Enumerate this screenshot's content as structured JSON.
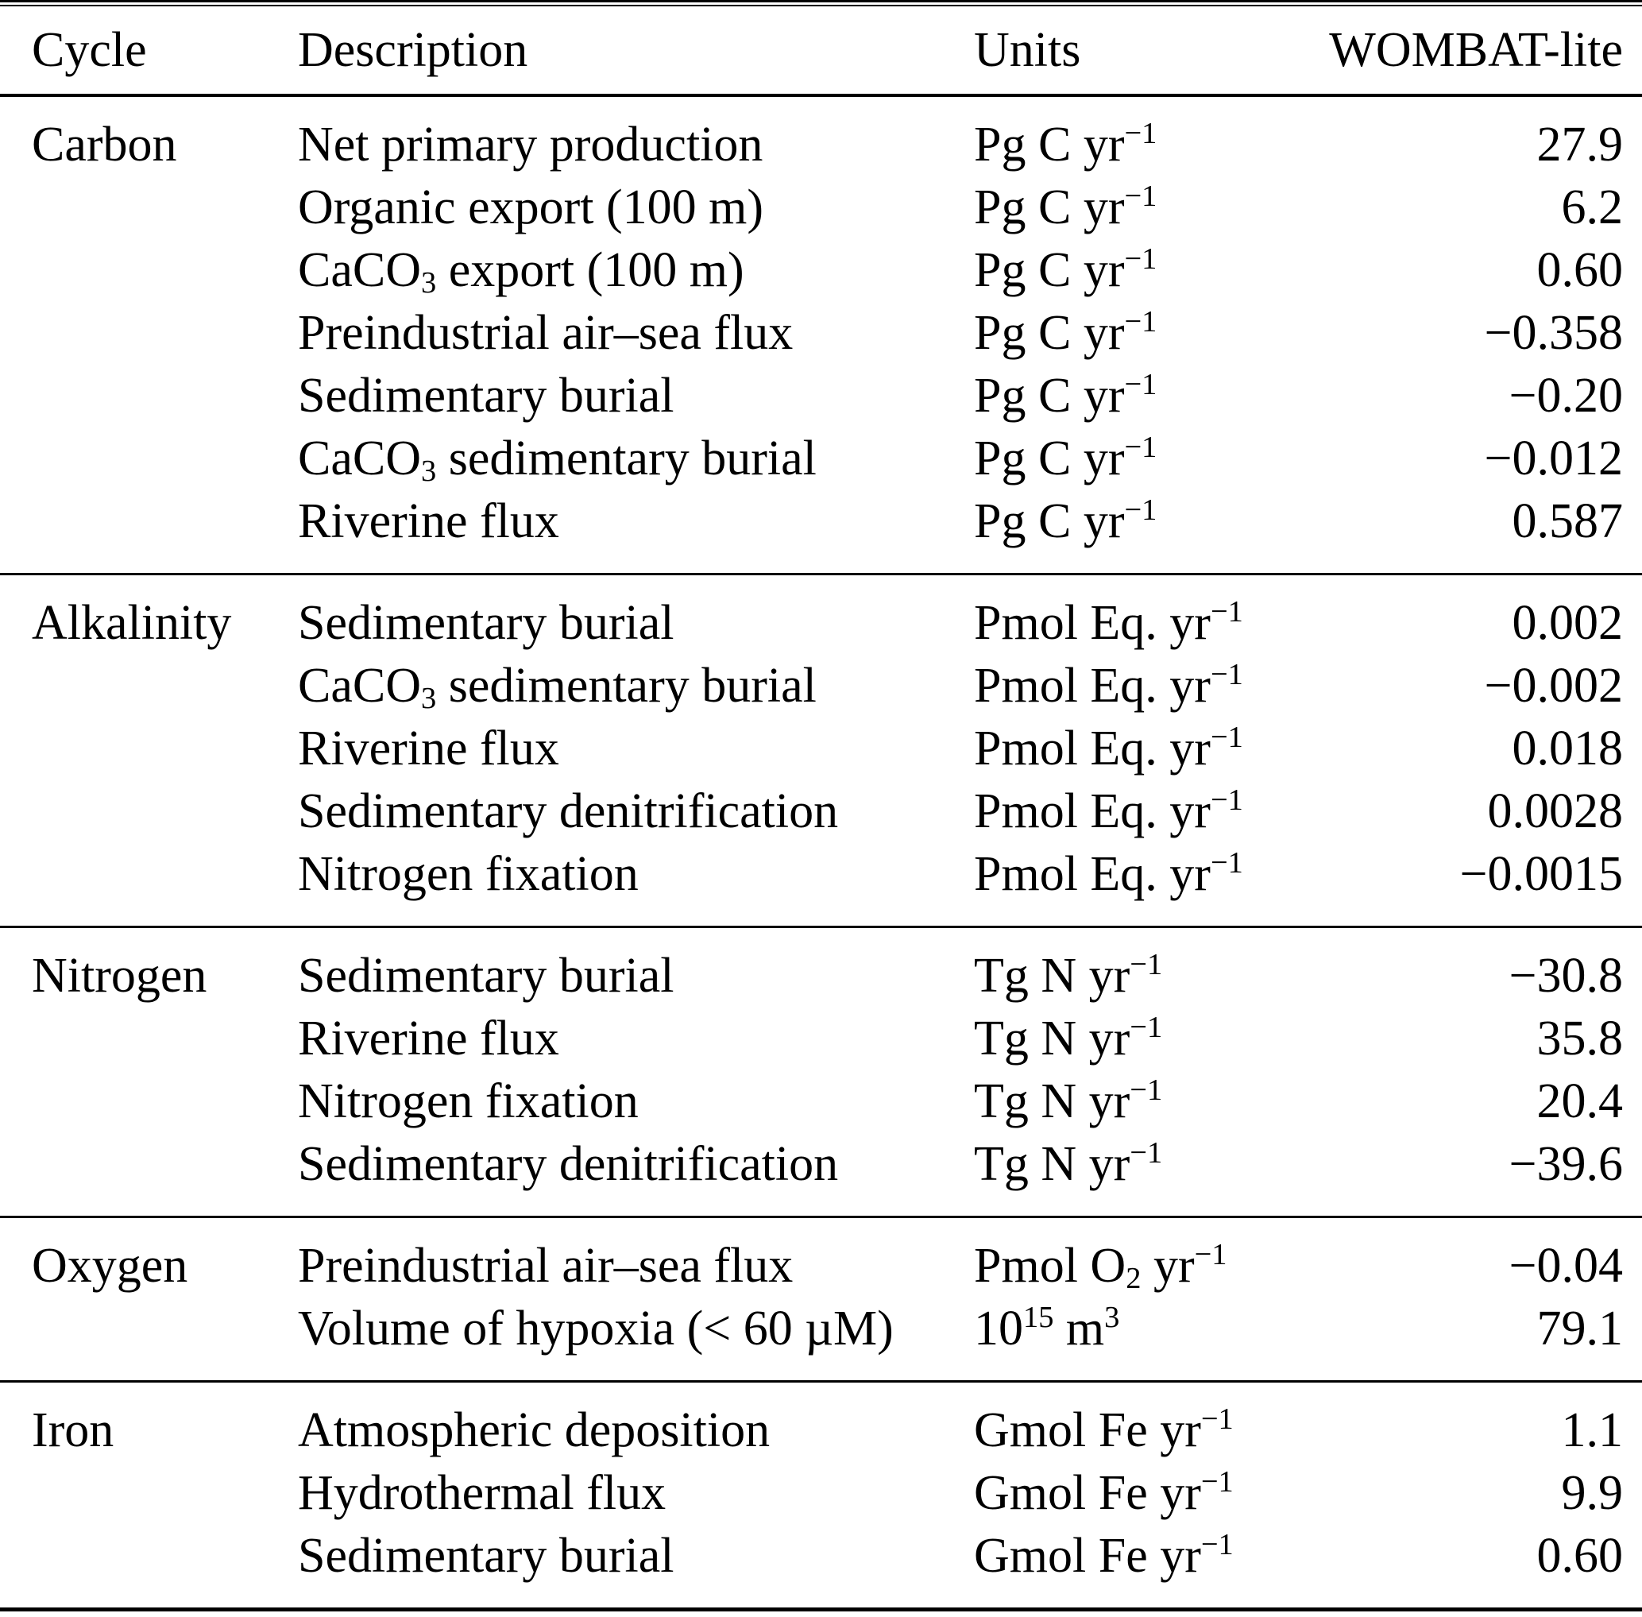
{
  "table": {
    "columns": [
      "Cycle",
      "Description",
      "Units",
      "WOMBAT-lite"
    ],
    "sections": [
      {
        "cycle": "Carbon",
        "rows": [
          {
            "description": "Net primary production",
            "units": "Pg C yr^−1^",
            "value": "27.9"
          },
          {
            "description": "Organic export (100 m)",
            "units": "Pg C yr^−1^",
            "value": "6.2"
          },
          {
            "description": "CaCO_3_ export (100 m)",
            "units": "Pg C yr^−1^",
            "value": "0.60"
          },
          {
            "description": "Preindustrial air–sea flux",
            "units": "Pg C yr^−1^",
            "value": "−0.358"
          },
          {
            "description": "Sedimentary burial",
            "units": "Pg C yr^−1^",
            "value": "−0.20"
          },
          {
            "description": "CaCO_3_ sedimentary burial",
            "units": "Pg C yr^−1^",
            "value": "−0.012"
          },
          {
            "description": "Riverine flux",
            "units": "Pg C yr^−1^",
            "value": "0.587"
          }
        ]
      },
      {
        "cycle": "Alkalinity",
        "rows": [
          {
            "description": "Sedimentary burial",
            "units": "Pmol Eq. yr^−1^",
            "value": "0.002"
          },
          {
            "description": "CaCO_3_ sedimentary burial",
            "units": "Pmol Eq. yr^−1^",
            "value": "−0.002"
          },
          {
            "description": "Riverine flux",
            "units": "Pmol Eq. yr^−1^",
            "value": "0.018"
          },
          {
            "description": "Sedimentary denitrification",
            "units": "Pmol Eq. yr^−1^",
            "value": "0.0028"
          },
          {
            "description": "Nitrogen fixation",
            "units": "Pmol Eq. yr^−1^",
            "value": "−0.0015"
          }
        ]
      },
      {
        "cycle": "Nitrogen",
        "rows": [
          {
            "description": "Sedimentary burial",
            "units": "Tg N yr^−1^",
            "value": "−30.8"
          },
          {
            "description": "Riverine flux",
            "units": "Tg N yr^−1^",
            "value": "35.8"
          },
          {
            "description": "Nitrogen fixation",
            "units": "Tg N yr^−1^",
            "value": "20.4"
          },
          {
            "description": "Sedimentary denitrification",
            "units": "Tg N yr^−1^",
            "value": "−39.6"
          }
        ]
      },
      {
        "cycle": "Oxygen",
        "rows": [
          {
            "description": "Preindustrial air–sea flux",
            "units": "Pmol O_2_ yr^−1^",
            "value": "−0.04"
          },
          {
            "description": "Volume of hypoxia (< 60 µM)",
            "units": "10^15^ m^3^",
            "value": "79.1"
          }
        ]
      },
      {
        "cycle": "Iron",
        "rows": [
          {
            "description": "Atmospheric deposition",
            "units": "Gmol Fe yr^−1^",
            "value": "1.1"
          },
          {
            "description": "Hydrothermal flux",
            "units": "Gmol Fe yr^−1^",
            "value": "9.9"
          },
          {
            "description": "Sedimentary burial",
            "units": "Gmol Fe yr^−1^",
            "value": "0.60"
          }
        ]
      }
    ]
  }
}
